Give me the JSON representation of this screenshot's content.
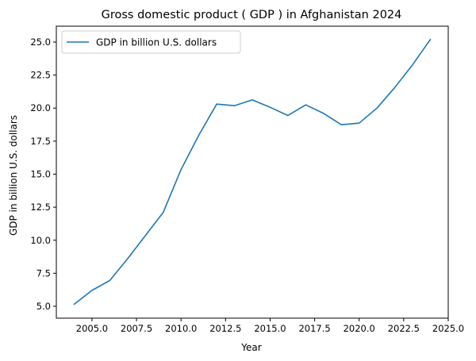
{
  "chart_data": {
    "type": "line",
    "title": "Gross domestic product ( GDP ) in Afghanistan 2024",
    "xlabel": "Year",
    "ylabel": "GDP in billion U.S. dollars",
    "xlim": [
      2003.0,
      2025.0
    ],
    "ylim": [
      4.1,
      26.2
    ],
    "xticks": [
      2005.0,
      2007.5,
      2010.0,
      2012.5,
      2015.0,
      2017.5,
      2020.0,
      2022.5,
      2025.0
    ],
    "xtick_labels": [
      "2005.0",
      "2007.5",
      "2010.0",
      "2012.5",
      "2015.0",
      "2017.5",
      "2020.0",
      "2022.5",
      "2025.0"
    ],
    "yticks": [
      5.0,
      7.5,
      10.0,
      12.5,
      15.0,
      17.5,
      20.0,
      22.5,
      25.0
    ],
    "ytick_labels": [
      "5.0",
      "7.5",
      "10.0",
      "12.5",
      "15.0",
      "17.5",
      "20.0",
      "22.5",
      "25.0"
    ],
    "grid": false,
    "legend_position": "top-left",
    "series": [
      {
        "name": "GDP in billion U.S. dollars",
        "color": "#1f77b4",
        "x": [
          2004,
          2005,
          2006,
          2007,
          2008,
          2009,
          2010,
          2011,
          2012,
          2013,
          2014,
          2015,
          2016,
          2017,
          2018,
          2019,
          2020,
          2021,
          2022,
          2023,
          2024
        ],
        "y": [
          5.15,
          6.2,
          6.95,
          8.6,
          10.35,
          12.1,
          15.35,
          17.95,
          20.3,
          20.18,
          20.62,
          20.06,
          19.44,
          20.24,
          19.6,
          18.74,
          18.86,
          20.0,
          21.56,
          23.28,
          25.2
        ]
      }
    ]
  }
}
